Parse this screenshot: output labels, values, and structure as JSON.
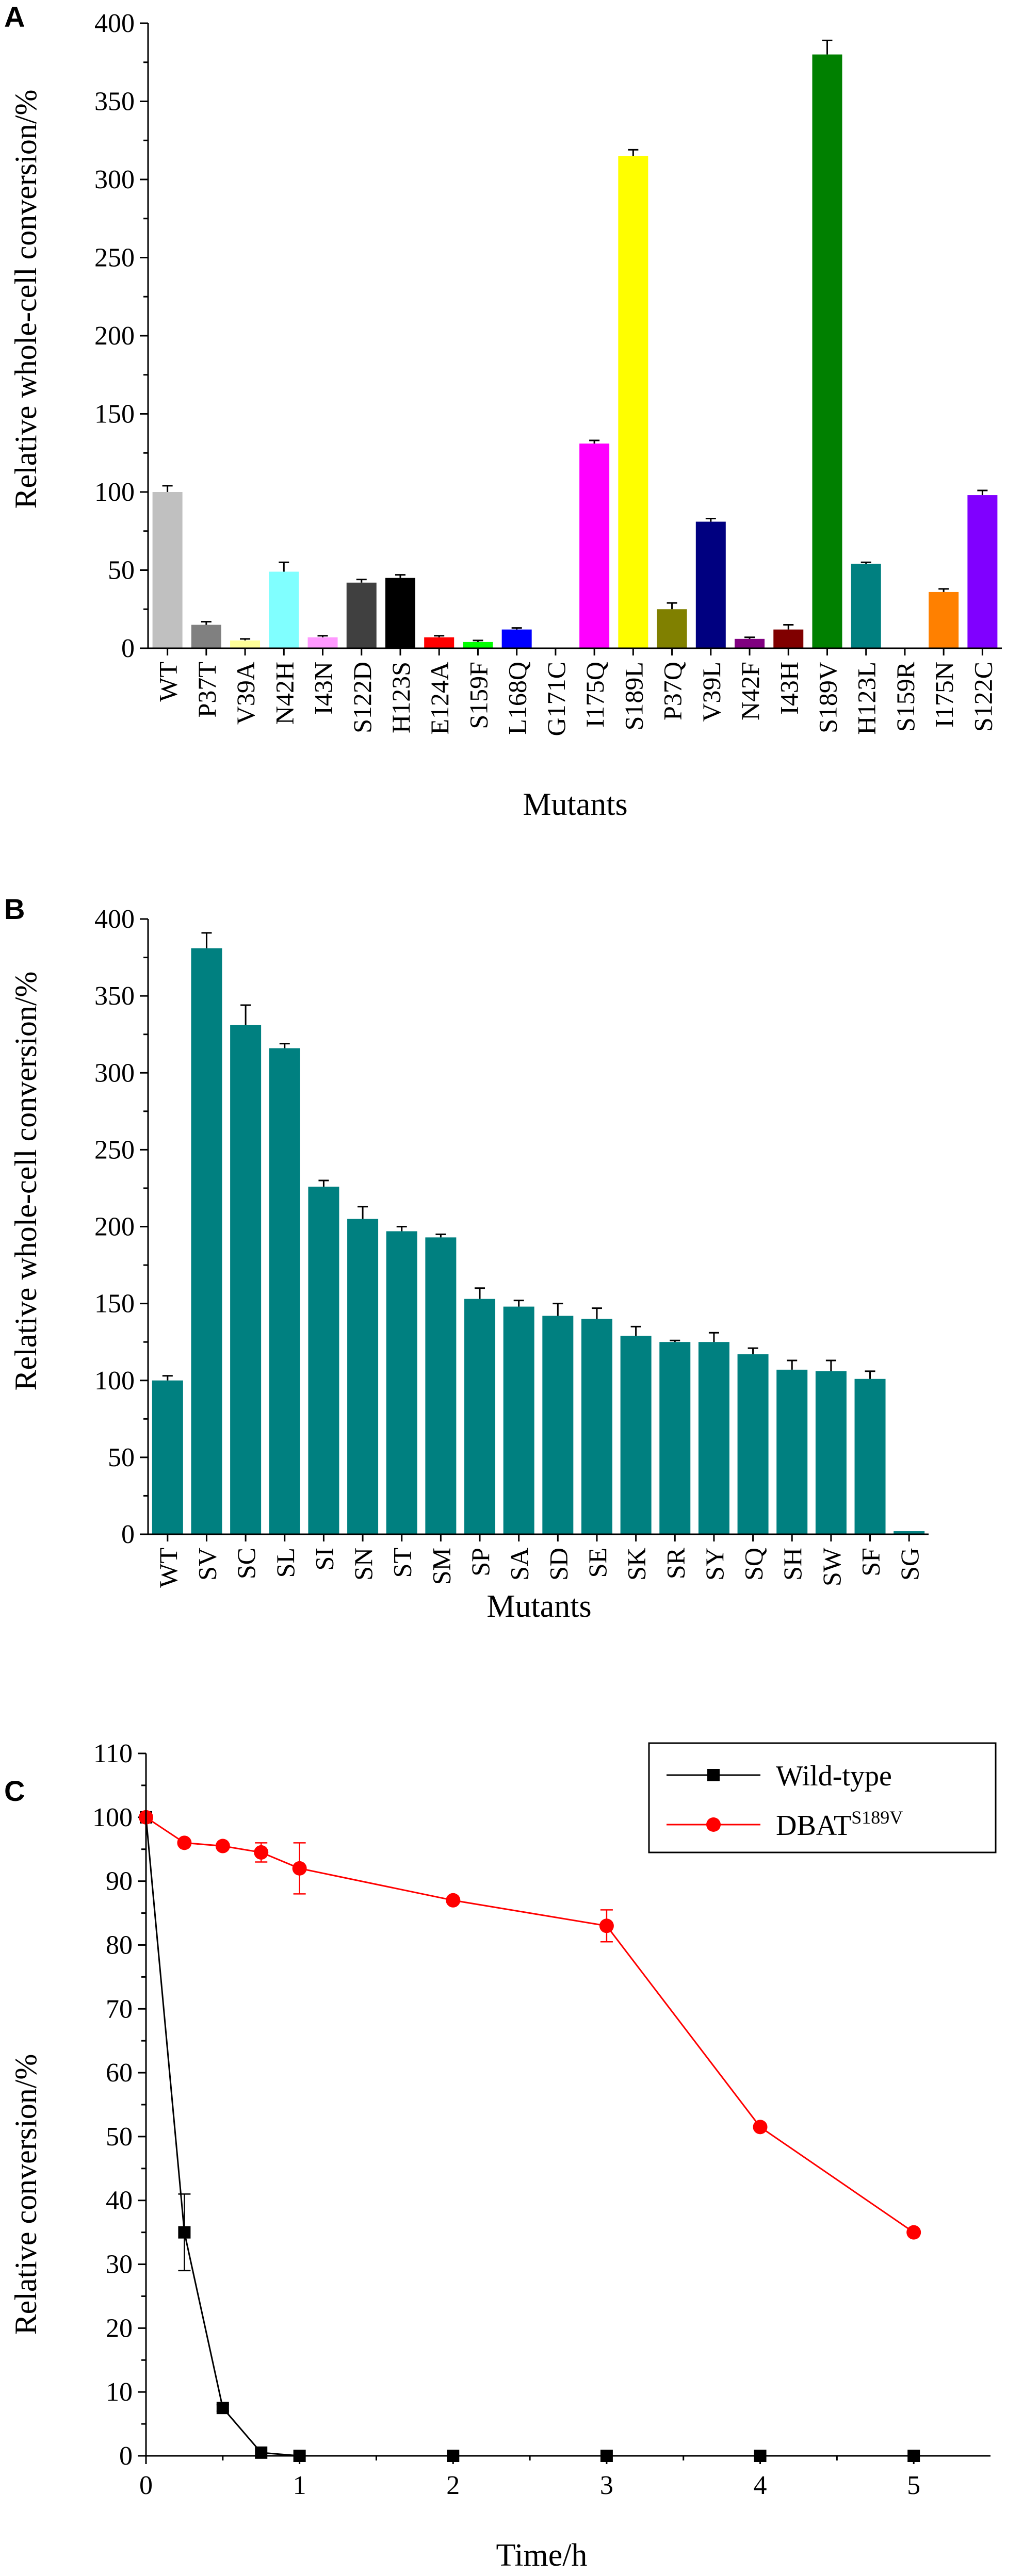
{
  "chart_data": [
    {
      "panel": "A",
      "type": "bar",
      "xlabel": "Mutants",
      "ylabel": "Relative whole-cell conversion/%",
      "ylim": [
        0,
        400
      ],
      "yticks": [
        0,
        50,
        100,
        150,
        200,
        250,
        300,
        350,
        400
      ],
      "categories": [
        "WT",
        "P37T",
        "V39A",
        "N42H",
        "I43N",
        "S122D",
        "H123S",
        "E124A",
        "S159F",
        "L168Q",
        "G171C",
        "I175Q",
        "S189L",
        "P37Q",
        "V39L",
        "N42F",
        "I43H",
        "S189V",
        "H123L",
        "S159R",
        "I175N",
        "S122C"
      ],
      "values": [
        100,
        15,
        5,
        49,
        7,
        42,
        45,
        7,
        4,
        12,
        0,
        131,
        315,
        25,
        81,
        6,
        12,
        380,
        54,
        0,
        36,
        98
      ],
      "errors": [
        4,
        2,
        1,
        6,
        1,
        2,
        2,
        1,
        1,
        1,
        0,
        2,
        4,
        4,
        2,
        1,
        3,
        9,
        1,
        0,
        2,
        3
      ],
      "colors": [
        "#c0c0c0",
        "#808080",
        "#ffff99",
        "#80ffff",
        "#ff99ff",
        "#404040",
        "#000000",
        "#ff0000",
        "#00ff00",
        "#0000ff",
        "#ffffff",
        "#ff00ff",
        "#ffff00",
        "#808000",
        "#000080",
        "#800080",
        "#800000",
        "#008000",
        "#008080",
        "#ffffff",
        "#ff8000",
        "#8000ff"
      ],
      "grid": false
    },
    {
      "panel": "B",
      "type": "bar",
      "xlabel": "Mutants",
      "ylabel": "Relative whole-cell conversion/%",
      "ylim": [
        0,
        400
      ],
      "yticks": [
        0,
        50,
        100,
        150,
        200,
        250,
        300,
        350,
        400
      ],
      "categories": [
        "WT",
        "SV",
        "SC",
        "SL",
        "SI",
        "SN",
        "ST",
        "SM",
        "SP",
        "SA",
        "SD",
        "SE",
        "SK",
        "SR",
        "SY",
        "SQ",
        "SH",
        "SW",
        "SF",
        "SG"
      ],
      "values": [
        100,
        381,
        331,
        316,
        226,
        205,
        197,
        193,
        153,
        148,
        142,
        140,
        129,
        125,
        125,
        117,
        107,
        106,
        101,
        2
      ],
      "errors": [
        3,
        10,
        13,
        3,
        4,
        8,
        3,
        2,
        7,
        4,
        8,
        7,
        6,
        1,
        6,
        4,
        6,
        7,
        5,
        0
      ],
      "color": "#008080",
      "grid": false
    },
    {
      "panel": "C",
      "type": "line",
      "xlabel": "Time/h",
      "ylabel": "Relative conversion/%",
      "xlim": [
        0,
        5.5
      ],
      "ylim": [
        0,
        110
      ],
      "xticks": [
        0,
        1,
        2,
        3,
        4,
        5
      ],
      "yticks": [
        0,
        10,
        20,
        30,
        40,
        50,
        60,
        70,
        80,
        90,
        100,
        110
      ],
      "legend_position": "top-right",
      "grid": false,
      "series": [
        {
          "name": "Wild-type",
          "color": "#000000",
          "marker": "square",
          "x": [
            0,
            0.25,
            0.5,
            0.75,
            1,
            2,
            3,
            4,
            5
          ],
          "y": [
            100,
            35,
            7.5,
            0.5,
            0,
            0,
            0,
            0,
            0
          ],
          "errors": [
            0,
            6,
            0.5,
            0,
            0,
            0,
            0,
            0,
            0
          ]
        },
        {
          "name": "DBAT",
          "name_superscript": "S189V",
          "color": "#ff0000",
          "marker": "circle",
          "x": [
            0,
            0.25,
            0.5,
            0.75,
            1,
            2,
            3,
            4,
            5
          ],
          "y": [
            100,
            96,
            95.5,
            94.5,
            92,
            87,
            83,
            51.5,
            35
          ],
          "errors": [
            0,
            0,
            0,
            1.5,
            4,
            0,
            2.5,
            0,
            0
          ]
        }
      ]
    }
  ],
  "figure": {
    "panel_labels": [
      "A",
      "B",
      "C"
    ]
  }
}
